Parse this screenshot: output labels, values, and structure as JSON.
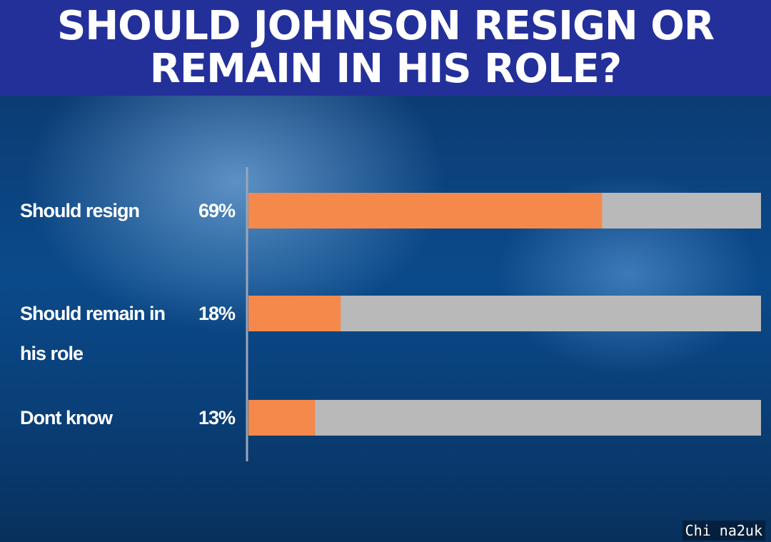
{
  "chart_data": {
    "type": "bar",
    "orientation": "horizontal",
    "title_lines": [
      "SHOULD JOHNSON RESIGN OR",
      "REMAIN IN HIS ROLE?"
    ],
    "categories": [
      [
        "Should resign"
      ],
      [
        "Should remain in",
        "his role"
      ],
      [
        "Dont know"
      ]
    ],
    "values": [
      69,
      18,
      13
    ],
    "value_labels": [
      "69%",
      "18%",
      "13%"
    ],
    "xlim": [
      0,
      100
    ],
    "colors": {
      "bar_fill": "#f4894b",
      "track_fill": "#b9b9b9",
      "header_bg": "#24309a",
      "axis_line": "#9aa6b8"
    }
  },
  "watermark": "Chi na2uk"
}
